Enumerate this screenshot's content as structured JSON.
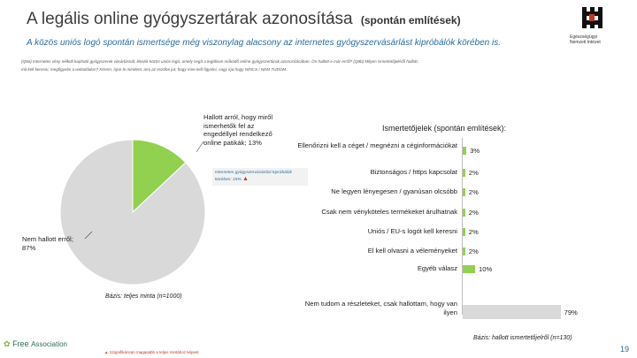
{
  "header": {
    "title": "A legális online gyógyszertárak azonosítása",
    "title_suffix": "(spontán említések)",
    "subtitle": "A közös uniós logó spontán ismertsége még viszonylag alacsony az internetes gyógyszervásárlást kipróbálók körében is."
  },
  "logo": {
    "icon": "castle-logo-icon",
    "text_lines": [
      "Egészségügyi",
      "Nemzeti Intézet"
    ]
  },
  "question_text": "(Q8a) Internetes vény nélküli kapható gyógyszerek vásárlásnál, létezik közös uniós logó, amely segít a legálisan működő online gyógyszertárak azonosításában. Ön hallott-e már erről? (Q8b) Milyen ismertetőjeléről hallott, mit kell keresni, megfigyelni a weboldalon? Kérem, írjon le mindent, ami az eszébe jut, hogy mire kell figyelni, vagy irja hogy NINCS / NEM TUDOM.",
  "chart_data": [
    {
      "type": "pie",
      "title": "",
      "slices": [
        {
          "label": "Hallott arról, hogy miről ismerhetők fel az engedéllyel rendelkező online patikák; 13%",
          "value": 13,
          "color": "#92d050"
        },
        {
          "label": "Nem hallott erről; 87%",
          "value": 87,
          "color": "#d9d9d9"
        }
      ],
      "callout": "Internetes gyógyszervásárlást kipróbálók körében: 15%",
      "base_note": "Bázis: teljes minta (n=1000)"
    },
    {
      "type": "bar",
      "orientation": "horizontal",
      "title": "Ismertetőjelek (spontán említések):",
      "xlim": [
        0,
        100
      ],
      "bars": [
        {
          "label": "Ellenőrizni kell a céget / megnézni a céginformációkat",
          "value": 3,
          "value_label": "3%",
          "color": "#92d050"
        },
        {
          "label": "Biztonságos / https kapcsolat",
          "value": 2,
          "value_label": "2%",
          "color": "#92d050"
        },
        {
          "label": "Ne legyen lényegesen / gyanúsan olcsóbb",
          "value": 2,
          "value_label": "2%",
          "color": "#92d050"
        },
        {
          "label": "Csak nem vényköteles termékeket árulhatnak",
          "value": 2,
          "value_label": "2%",
          "color": "#92d050"
        },
        {
          "label": "Uniós / EU-s logót kell keresni",
          "value": 2,
          "value_label": "2%",
          "color": "#92d050"
        },
        {
          "label": "El kell olvasni a véleményeket",
          "value": 2,
          "value_label": "2%",
          "color": "#92d050"
        },
        {
          "label": "Egyéb válasz",
          "value": 10,
          "value_label": "10%",
          "color": "#92d050"
        },
        {
          "label": "Nem tudom a részleteket, csak hallottam, hogy van ilyen",
          "value": 79,
          "value_label": "79%",
          "color": "#d9d9d9"
        }
      ],
      "base_note": "Bázis: hallott ismertetőjelről (n=130)"
    }
  ],
  "footer": {
    "brand_line1": "Free",
    "brand_line2": "Association",
    "note": "Szignifikánsan magasabb a teljes mintához képest",
    "page_number": "19"
  }
}
